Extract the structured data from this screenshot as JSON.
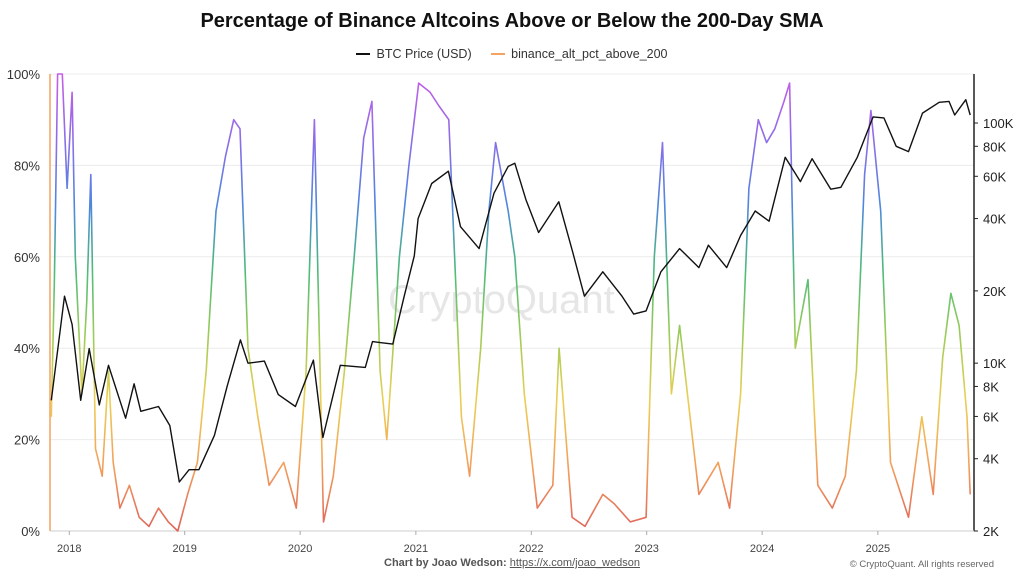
{
  "title": "Percentage of Binance Altcoins Above or Below the 200-Day SMA",
  "legend": {
    "items": [
      {
        "label": "BTC Price (USD)",
        "color": "#111111"
      },
      {
        "label": "binance_alt_pct_above_200",
        "color": "#f4a460"
      }
    ]
  },
  "watermark": "CryptoQuant",
  "credit": {
    "prefix": "Chart by Joao Wedson:",
    "link": "https://x.com/joao_wedson"
  },
  "copyright": "© CryptoQuant. All rights reserved",
  "chart_data": {
    "type": "line",
    "title": "Percentage of Binance Altcoins Above or Below the 200-Day SMA",
    "x_range": [
      "2017-11-01",
      "2025-11-01"
    ],
    "x_ticks": [
      "2018",
      "2019",
      "2020",
      "2021",
      "2022",
      "2023",
      "2024",
      "2025"
    ],
    "y_left": {
      "range": [
        0,
        100
      ],
      "ticks": [
        "0%",
        "20%",
        "40%",
        "60%",
        "80%",
        "100%"
      ]
    },
    "y_right": {
      "scale": "log",
      "range": [
        2000,
        160000
      ],
      "ticks": [
        2000,
        4000,
        6000,
        8000,
        10000,
        20000,
        40000,
        60000,
        80000,
        100000
      ],
      "tick_labels": [
        "2K",
        "4K",
        "6K",
        "8K",
        "10K",
        "20K",
        "40K",
        "60K",
        "80K",
        "100K"
      ]
    },
    "grid": "horizontal",
    "legend_position": "top-center",
    "series": [
      {
        "name": "binance_alt_pct_above_200",
        "axis": "left",
        "color_scale": [
          "#e0635a",
          "#f2a05c",
          "#eccf54",
          "#9ccc58",
          "#4dbb7a",
          "#4f86e0",
          "#8e6de8",
          "#c65ee8"
        ],
        "points": [
          [
            "2017-11-05",
            25
          ],
          [
            "2017-11-15",
            55
          ],
          [
            "2017-11-25",
            100
          ],
          [
            "2017-12-10",
            100
          ],
          [
            "2017-12-25",
            75
          ],
          [
            "2018-01-10",
            96
          ],
          [
            "2018-01-20",
            60
          ],
          [
            "2018-02-10",
            30
          ],
          [
            "2018-02-25",
            50
          ],
          [
            "2018-03-10",
            78
          ],
          [
            "2018-03-25",
            18
          ],
          [
            "2018-04-15",
            12
          ],
          [
            "2018-05-05",
            35
          ],
          [
            "2018-05-20",
            15
          ],
          [
            "2018-06-10",
            5
          ],
          [
            "2018-07-10",
            10
          ],
          [
            "2018-08-10",
            3
          ],
          [
            "2018-09-10",
            1
          ],
          [
            "2018-10-10",
            5
          ],
          [
            "2018-11-10",
            2
          ],
          [
            "2018-12-10",
            0
          ],
          [
            "2019-01-10",
            8
          ],
          [
            "2019-02-10",
            15
          ],
          [
            "2019-03-10",
            35
          ],
          [
            "2019-04-10",
            70
          ],
          [
            "2019-05-10",
            82
          ],
          [
            "2019-06-05",
            90
          ],
          [
            "2019-06-25",
            88
          ],
          [
            "2019-07-20",
            40
          ],
          [
            "2019-08-20",
            25
          ],
          [
            "2019-09-25",
            10
          ],
          [
            "2019-11-10",
            15
          ],
          [
            "2019-12-20",
            5
          ],
          [
            "2020-01-20",
            35
          ],
          [
            "2020-02-15",
            90
          ],
          [
            "2020-03-15",
            2
          ],
          [
            "2020-04-15",
            12
          ],
          [
            "2020-05-20",
            35
          ],
          [
            "2020-06-20",
            60
          ],
          [
            "2020-07-20",
            86
          ],
          [
            "2020-08-15",
            94
          ],
          [
            "2020-09-10",
            35
          ],
          [
            "2020-10-01",
            20
          ],
          [
            "2020-11-10",
            60
          ],
          [
            "2020-12-10",
            80
          ],
          [
            "2021-01-10",
            98
          ],
          [
            "2021-02-15",
            96
          ],
          [
            "2021-03-15",
            93
          ],
          [
            "2021-04-15",
            90
          ],
          [
            "2021-05-25",
            25
          ],
          [
            "2021-06-20",
            12
          ],
          [
            "2021-07-25",
            40
          ],
          [
            "2021-08-20",
            70
          ],
          [
            "2021-09-10",
            85
          ],
          [
            "2021-10-20",
            70
          ],
          [
            "2021-11-10",
            60
          ],
          [
            "2021-12-10",
            30
          ],
          [
            "2022-01-20",
            5
          ],
          [
            "2022-03-10",
            10
          ],
          [
            "2022-03-30",
            40
          ],
          [
            "2022-05-10",
            3
          ],
          [
            "2022-06-20",
            1
          ],
          [
            "2022-08-15",
            8
          ],
          [
            "2022-09-20",
            6
          ],
          [
            "2022-11-10",
            2
          ],
          [
            "2022-12-30",
            3
          ],
          [
            "2023-01-25",
            60
          ],
          [
            "2023-02-20",
            85
          ],
          [
            "2023-03-20",
            30
          ],
          [
            "2023-04-15",
            45
          ],
          [
            "2023-06-15",
            8
          ],
          [
            "2023-08-15",
            15
          ],
          [
            "2023-09-20",
            5
          ],
          [
            "2023-10-25",
            30
          ],
          [
            "2023-11-20",
            75
          ],
          [
            "2023-12-20",
            90
          ],
          [
            "2024-01-15",
            85
          ],
          [
            "2024-02-10",
            88
          ],
          [
            "2024-03-10",
            94
          ],
          [
            "2024-03-28",
            98
          ],
          [
            "2024-04-15",
            40
          ],
          [
            "2024-05-25",
            55
          ],
          [
            "2024-06-25",
            10
          ],
          [
            "2024-08-10",
            5
          ],
          [
            "2024-09-20",
            12
          ],
          [
            "2024-10-25",
            35
          ],
          [
            "2024-11-20",
            78
          ],
          [
            "2024-12-10",
            92
          ],
          [
            "2025-01-10",
            70
          ],
          [
            "2025-02-10",
            15
          ],
          [
            "2025-04-08",
            3
          ],
          [
            "2025-05-20",
            25
          ],
          [
            "2025-06-25",
            8
          ],
          [
            "2025-07-25",
            38
          ],
          [
            "2025-08-20",
            52
          ],
          [
            "2025-09-15",
            45
          ],
          [
            "2025-10-10",
            25
          ],
          [
            "2025-10-20",
            8
          ]
        ]
      },
      {
        "name": "BTC Price (USD)",
        "axis": "right",
        "color": "#111111",
        "points": [
          [
            "2017-11-05",
            7000
          ],
          [
            "2017-12-17",
            19000
          ],
          [
            "2018-01-10",
            14500
          ],
          [
            "2018-02-06",
            7000
          ],
          [
            "2018-03-05",
            11500
          ],
          [
            "2018-04-06",
            6700
          ],
          [
            "2018-05-05",
            9800
          ],
          [
            "2018-06-28",
            5900
          ],
          [
            "2018-07-25",
            8200
          ],
          [
            "2018-08-15",
            6300
          ],
          [
            "2018-10-10",
            6600
          ],
          [
            "2018-11-15",
            5500
          ],
          [
            "2018-12-15",
            3200
          ],
          [
            "2019-01-15",
            3600
          ],
          [
            "2019-02-15",
            3600
          ],
          [
            "2019-04-05",
            5000
          ],
          [
            "2019-05-15",
            8000
          ],
          [
            "2019-06-26",
            12500
          ],
          [
            "2019-07-20",
            10000
          ],
          [
            "2019-09-10",
            10200
          ],
          [
            "2019-10-24",
            7400
          ],
          [
            "2019-12-17",
            6600
          ],
          [
            "2020-02-12",
            10300
          ],
          [
            "2020-03-13",
            4900
          ],
          [
            "2020-05-07",
            9800
          ],
          [
            "2020-07-25",
            9600
          ],
          [
            "2020-08-17",
            12300
          ],
          [
            "2020-10-20",
            12000
          ],
          [
            "2020-11-25",
            19000
          ],
          [
            "2020-12-27",
            28000
          ],
          [
            "2021-01-08",
            40000
          ],
          [
            "2021-02-20",
            56000
          ],
          [
            "2021-04-14",
            63000
          ],
          [
            "2021-05-22",
            37000
          ],
          [
            "2021-07-20",
            30000
          ],
          [
            "2021-09-05",
            51000
          ],
          [
            "2021-10-20",
            66000
          ],
          [
            "2021-11-10",
            68000
          ],
          [
            "2021-12-15",
            48000
          ],
          [
            "2022-01-24",
            35000
          ],
          [
            "2022-03-29",
            47000
          ],
          [
            "2022-05-12",
            29000
          ],
          [
            "2022-06-18",
            19000
          ],
          [
            "2022-08-15",
            24000
          ],
          [
            "2022-10-15",
            19000
          ],
          [
            "2022-11-21",
            16000
          ],
          [
            "2022-12-30",
            16500
          ],
          [
            "2023-02-15",
            24000
          ],
          [
            "2023-04-15",
            30000
          ],
          [
            "2023-06-15",
            25000
          ],
          [
            "2023-07-15",
            31000
          ],
          [
            "2023-09-11",
            25000
          ],
          [
            "2023-10-25",
            34000
          ],
          [
            "2023-12-10",
            43000
          ],
          [
            "2024-01-23",
            39000
          ],
          [
            "2024-03-14",
            72000
          ],
          [
            "2024-05-01",
            57000
          ],
          [
            "2024-06-07",
            71000
          ],
          [
            "2024-08-05",
            53000
          ],
          [
            "2024-09-06",
            54000
          ],
          [
            "2024-10-28",
            72000
          ],
          [
            "2024-12-17",
            106000
          ],
          [
            "2025-01-20",
            105000
          ],
          [
            "2025-02-28",
            80000
          ],
          [
            "2025-04-08",
            76000
          ],
          [
            "2025-05-22",
            110000
          ],
          [
            "2025-07-14",
            122000
          ],
          [
            "2025-08-14",
            123000
          ],
          [
            "2025-09-01",
            108000
          ],
          [
            "2025-10-06",
            125000
          ],
          [
            "2025-10-20",
            108000
          ]
        ]
      }
    ]
  }
}
